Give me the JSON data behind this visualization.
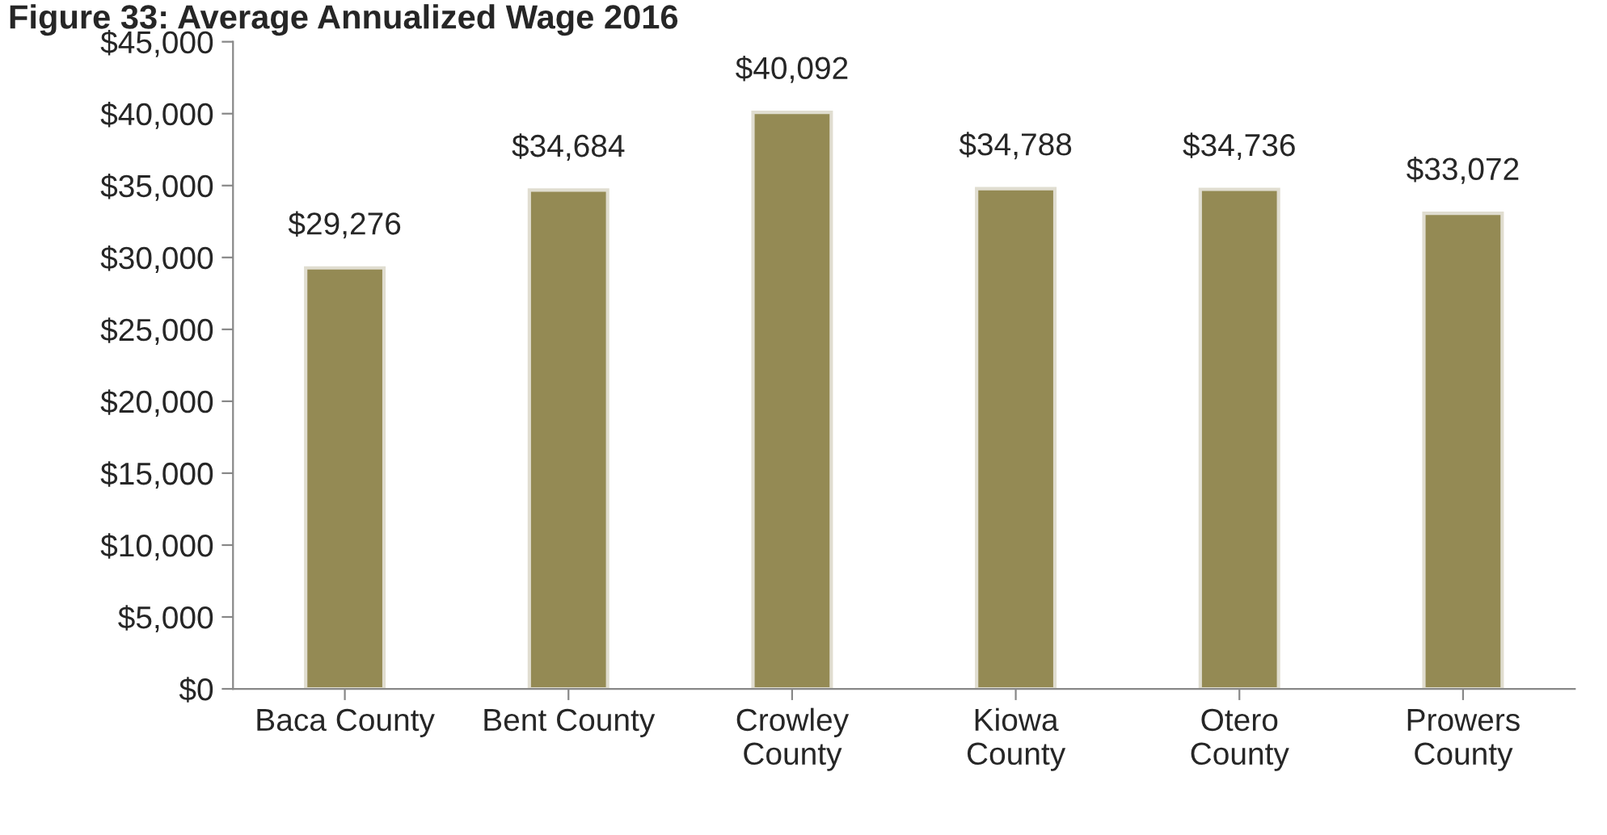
{
  "chart_data": {
    "type": "bar",
    "title": "Figure 33: Average Annualized Wage 2016",
    "categories": [
      "Baca County",
      "Bent County",
      "Crowley\nCounty",
      "Kiowa\nCounty",
      "Otero\nCounty",
      "Prowers\nCounty"
    ],
    "values": [
      29276,
      34684,
      40092,
      34788,
      34736,
      33072
    ],
    "value_labels": [
      "$29,276",
      "$34,684",
      "$40,092",
      "$34,788",
      "$34,736",
      "$33,072"
    ],
    "color": "#948a54",
    "ylim": [
      0,
      45000
    ],
    "yticks": [
      {
        "value": 0,
        "label": "$0"
      },
      {
        "value": 5000,
        "label": "$5,000"
      },
      {
        "value": 10000,
        "label": "$10,000"
      },
      {
        "value": 15000,
        "label": "$15,000"
      },
      {
        "value": 20000,
        "label": "$20,000"
      },
      {
        "value": 25000,
        "label": "$25,000"
      },
      {
        "value": 30000,
        "label": "$30,000"
      },
      {
        "value": 35000,
        "label": "$35,000"
      },
      {
        "value": 40000,
        "label": "$40,000"
      },
      {
        "value": 45000,
        "label": "$45,000"
      }
    ],
    "grid": false,
    "legend": false
  }
}
